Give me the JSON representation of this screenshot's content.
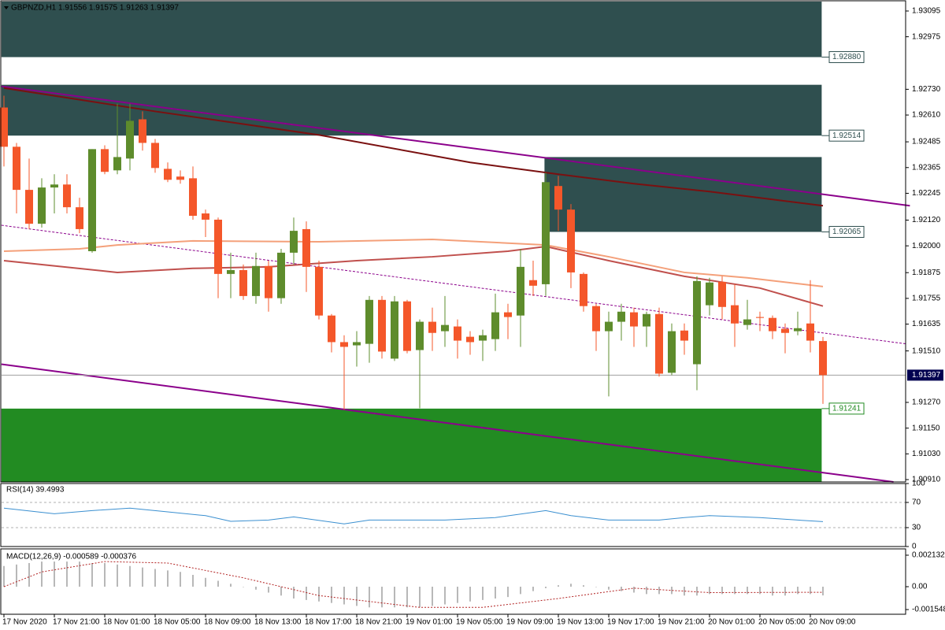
{
  "chart_data": [
    {
      "type": "candlestick",
      "title": "GBPNZD,H1  1.91556 1.91575 1.91263 1.91397",
      "categories": [
        "17 Nov 2020",
        null,
        null,
        null,
        "17 Nov 21:00",
        null,
        null,
        null,
        "18 Nov 01:00",
        null,
        null,
        null,
        "18 Nov 05:00",
        null,
        null,
        null,
        "18 Nov 09:00",
        null,
        null,
        null,
        "18 Nov 13:00",
        null,
        null,
        null,
        "18 Nov 17:00",
        null,
        null,
        null,
        "18 Nov 21:00",
        null,
        null,
        null,
        "19 Nov 01:00",
        null,
        null,
        null,
        "19 Nov 05:00",
        null,
        null,
        null,
        "19 Nov 09:00",
        null,
        null,
        null,
        "19 Nov 13:00",
        null,
        null,
        null,
        "19 Nov 17:00",
        null,
        null,
        null,
        "19 Nov 21:00",
        null,
        null,
        null,
        "20 Nov 01:00",
        null,
        null,
        null,
        "20 Nov 05:00",
        null,
        null,
        null,
        "20 Nov 09:00",
        null
      ],
      "open": [
        1.92645,
        1.92462,
        1.92261,
        1.92103,
        1.92272,
        1.92286,
        1.9218,
        1.91975,
        1.92451,
        1.92352,
        1.92407,
        1.9259,
        1.9248,
        1.92359,
        1.92323,
        1.92315,
        1.92151,
        1.92122,
        1.91869,
        1.91887,
        1.91766,
        1.91906,
        1.91756,
        1.91968,
        1.92078,
        1.91902,
        1.91675,
        1.91551,
        1.91536,
        1.91543,
        1.91748,
        1.91474,
        1.91741,
        1.91514,
        1.91646,
        1.91602,
        1.91624,
        1.91576,
        1.91558,
        1.91565,
        1.9169,
        1.91675,
        1.9184,
        1.91821,
        1.92279,
        1.92169,
        1.91869,
        1.91719,
        1.91602,
        1.91646,
        1.9169,
        1.91624,
        1.91682,
        1.91408,
        1.91605,
        1.91448,
        1.91723,
        1.91832,
        1.91723,
        1.91631,
        1.91668,
        1.91664,
        1.91613,
        1.91602,
        1.91638,
        1.91556
      ],
      "high": [
        1.927,
        1.9248,
        1.92407,
        1.92315,
        1.92334,
        1.92334,
        1.92224,
        1.92451,
        1.92469,
        1.92663,
        1.92663,
        1.92627,
        1.92498,
        1.92389,
        1.92352,
        1.9237,
        1.92169,
        1.92132,
        1.91968,
        1.91913,
        1.91968,
        1.91931,
        1.91986,
        1.92132,
        1.92114,
        1.91931,
        1.91682,
        1.91583,
        1.91602,
        1.91766,
        1.91766,
        1.91766,
        1.91748,
        1.91657,
        1.91712,
        1.91766,
        1.91657,
        1.91602,
        1.91609,
        1.91777,
        1.9173,
        1.91986,
        1.91931,
        1.92341,
        1.92326,
        1.92195,
        1.91876,
        1.9173,
        1.91693,
        1.9173,
        1.91712,
        1.91693,
        1.91712,
        1.91638,
        1.91638,
        1.91858,
        1.91851,
        1.91858,
        1.91821,
        1.91748,
        1.91693,
        1.91675,
        1.91638,
        1.91693,
        1.9184,
        1.91575
      ],
      "low": [
        1.9237,
        1.92151,
        1.92078,
        1.92085,
        1.92151,
        1.92151,
        1.92059,
        1.91968,
        1.92334,
        1.92334,
        1.92352,
        1.92444,
        1.92341,
        1.92297,
        1.9229,
        1.92122,
        1.92041,
        1.91756,
        1.91756,
        1.91748,
        1.9173,
        1.91693,
        1.9173,
        1.91913,
        1.91785,
        1.91657,
        1.91503,
        1.91236,
        1.91437,
        1.91455,
        1.91474,
        1.91463,
        1.91499,
        1.91243,
        1.9151,
        1.91529,
        1.91474,
        1.91492,
        1.91463,
        1.9151,
        1.91565,
        1.91529,
        1.91766,
        1.91766,
        1.9207,
        1.91803,
        1.91693,
        1.9151,
        1.91298,
        1.91558,
        1.91529,
        1.91529,
        1.9139,
        1.91397,
        1.91492,
        1.91327,
        1.91675,
        1.91657,
        1.91529,
        1.91609,
        1.91602,
        1.91565,
        1.91499,
        1.91583,
        1.91503,
        1.91263
      ],
      "close": [
        1.92462,
        1.92261,
        1.92103,
        1.92272,
        1.92286,
        1.9218,
        1.92078,
        1.92451,
        1.92345,
        1.92414,
        1.92583,
        1.9248,
        1.92363,
        1.92308,
        1.92308,
        1.9214,
        1.92122,
        1.91869,
        1.91887,
        1.91766,
        1.91906,
        1.91756,
        1.91968,
        1.9207,
        1.91902,
        1.91675,
        1.91551,
        1.91529,
        1.91551,
        1.91748,
        1.91507,
        1.91741,
        1.9151,
        1.91646,
        1.91594,
        1.91631,
        1.91558,
        1.91551,
        1.91583,
        1.9169,
        1.91668,
        1.91902,
        1.91814,
        1.92297,
        1.92169,
        1.91876,
        1.91719,
        1.91602,
        1.91646,
        1.91693,
        1.91624,
        1.91682,
        1.91404,
        1.91602,
        1.91558,
        1.91836,
        1.91829,
        1.91715,
        1.91638,
        1.91657,
        1.91664,
        1.91602,
        1.91594,
        1.91616,
        1.91558,
        1.91397
      ],
      "up_color": "#5e8c2c",
      "down_color": "#f4572a",
      "ylim": [
        1.90899,
        1.93139
      ],
      "yticks": [
        1.93095,
        1.92975,
        {
          "value": 1.9273,
          "label": "1.92730"
        },
        {
          "value": 1.9261,
          "label": "1.92610"
        },
        1.92485,
        1.92365,
        1.92245,
        {
          "value": 1.9212,
          "label": "1.92120"
        },
        {
          "value": 1.92,
          "label": "1.92000"
        },
        1.91875,
        1.91755,
        1.91635,
        {
          "value": 1.9151,
          "label": "1.91510"
        },
        {
          "value": 1.9127,
          "label": "1.91270"
        },
        {
          "value": 1.9115,
          "label": "1.91150"
        },
        {
          "value": 1.9103,
          "label": "1.91030"
        },
        {
          "value": 1.9091,
          "label": "1.90910"
        }
      ],
      "zones": [
        {
          "x": [
            -0.2,
            64.9
          ],
          "range": [
            1.9288,
            1.93139
          ],
          "color": "#2f4f4f",
          "level": {
            "value": 1.9288,
            "label": "1.92880"
          }
        },
        {
          "x": [
            -0.2,
            64.9
          ],
          "range": [
            1.92514,
            1.92751
          ],
          "color": "#2f4f4f",
          "level": {
            "value": 1.92514,
            "label": "1.92514"
          }
        },
        {
          "x": [
            42.9,
            64.9
          ],
          "range": [
            1.92065,
            1.92414
          ],
          "color": "#2f4f4f",
          "level": {
            "value": 1.92065,
            "label": "1.92065"
          }
        },
        {
          "x": [
            -0.2,
            64.9
          ],
          "range": [
            1.90899,
            1.91241
          ],
          "color": "#228b22",
          "level": {
            "value": 1.91241,
            "label": "1.91241"
          }
        }
      ],
      "last_price": {
        "value": 1.91397,
        "label": "1.91397"
      },
      "lines": [
        {
          "x": [
            -0.2,
            71.9
          ],
          "values": [
            1.92744,
            1.92187
          ],
          "color": "#8b008b",
          "width": 2,
          "dashed": false
        },
        {
          "x": [
            -0.2,
            70.6
          ],
          "values": [
            1.91448,
            1.90899
          ],
          "color": "#8b008b",
          "width": 2,
          "dashed": false
        },
        {
          "x": [
            -0.2,
            71.6
          ],
          "values": [
            1.92096,
            1.91543
          ],
          "color": "#8b008b",
          "width": 1,
          "dashed": true
        },
        {
          "x": [
            0,
            12,
            25,
            37,
            44,
            50,
            56,
            65
          ],
          "values": [
            1.92736,
            1.92627,
            1.92517,
            1.92389,
            1.92334,
            1.9229,
            1.92253,
            1.92187
          ],
          "color": "#7a1010",
          "width": 2,
          "dashed": false
        },
        {
          "x": [
            0,
            6,
            9,
            15,
            25,
            34,
            43,
            48,
            54,
            59,
            65
          ],
          "values": [
            1.91975,
            1.91986,
            1.92004,
            1.92023,
            1.92019,
            1.9203,
            1.92004,
            1.91949,
            1.91876,
            1.91851,
            1.9181
          ],
          "color": "#f4a07a",
          "width": 2,
          "dashed": false
        },
        {
          "x": [
            0,
            9,
            15,
            21,
            28,
            34,
            40,
            43,
            48,
            54,
            60,
            65
          ],
          "values": [
            1.91931,
            1.91876,
            1.91895,
            1.91902,
            1.91931,
            1.91949,
            1.91975,
            1.91997,
            1.91931,
            1.91858,
            1.91803,
            1.91719
          ],
          "color": "#c0504d",
          "width": 2,
          "dashed": false
        }
      ]
    },
    {
      "type": "line",
      "title": "RSI(14) 39.4993",
      "x": [
        0,
        4,
        7,
        10,
        13,
        16,
        18,
        21,
        23,
        27,
        29,
        31,
        35,
        39,
        43,
        45,
        48,
        52,
        54,
        56,
        60,
        63,
        65
      ],
      "values": [
        61,
        52,
        57,
        61,
        55,
        49,
        40,
        42,
        47,
        36,
        42,
        42,
        42,
        46,
        57,
        49,
        42,
        42,
        46,
        49,
        46,
        42,
        39.4993
      ],
      "color": "#3a8fd0",
      "ylim": [
        0,
        100
      ],
      "yticks": [
        100,
        70,
        30,
        0
      ],
      "levels": [
        70,
        30
      ]
    },
    {
      "type": "macd",
      "title": "MACD(12,26,9) -0.000589 -0.000376",
      "values": [
        0.0014,
        0.0015,
        0.0016,
        0.0017,
        0.0017,
        0.0017,
        0.0017,
        0.0016,
        0.0016,
        0.0015,
        0.0014,
        0.0013,
        0.0012,
        0.0011,
        0.001,
        0.0008,
        0.0006,
        0.0004,
        0.0002,
        0,
        -0.0002,
        -0.0004,
        -0.0006,
        -0.0008,
        -0.0009,
        -0.001,
        -0.0011,
        -0.0012,
        -0.0013,
        -0.0014,
        -0.0014,
        -0.0014,
        -0.0014,
        -0.0014,
        -0.0013,
        -0.0012,
        -0.0011,
        -0.001,
        -0.0009,
        -0.0008,
        -0.0007,
        -0.0005,
        -0.0003,
        -0.0001,
        0.0001,
        0.0002,
        0.0001,
        0,
        -0.0002,
        -0.0003,
        -0.0004,
        -0.0005,
        -0.0005,
        -0.0005,
        -0.0006,
        -0.0006,
        -0.0005,
        -0.0005,
        -0.0005,
        -0.0005,
        -0.0005,
        -0.0006,
        -0.0006,
        -0.0005,
        -0.0005,
        -0.000589
      ],
      "color": "#b8b8b8",
      "signal": {
        "x": [
          0,
          3,
          8,
          13,
          19,
          25,
          33,
          38,
          44,
          50,
          56,
          65
        ],
        "values": [
          0,
          0.001,
          0.0017,
          0.0016,
          0.0006,
          -0.0006,
          -0.0014,
          -0.0014,
          -0.0008,
          -0.0001,
          -0.0004,
          -0.000376
        ],
        "color": "#b22222"
      },
      "ylim": [
        -0.001865,
        0.002505
      ],
      "yticks": [
        0.002132,
        {
          "value": 0,
          "label": "0.00"
        },
        -0.001548
      ]
    }
  ]
}
